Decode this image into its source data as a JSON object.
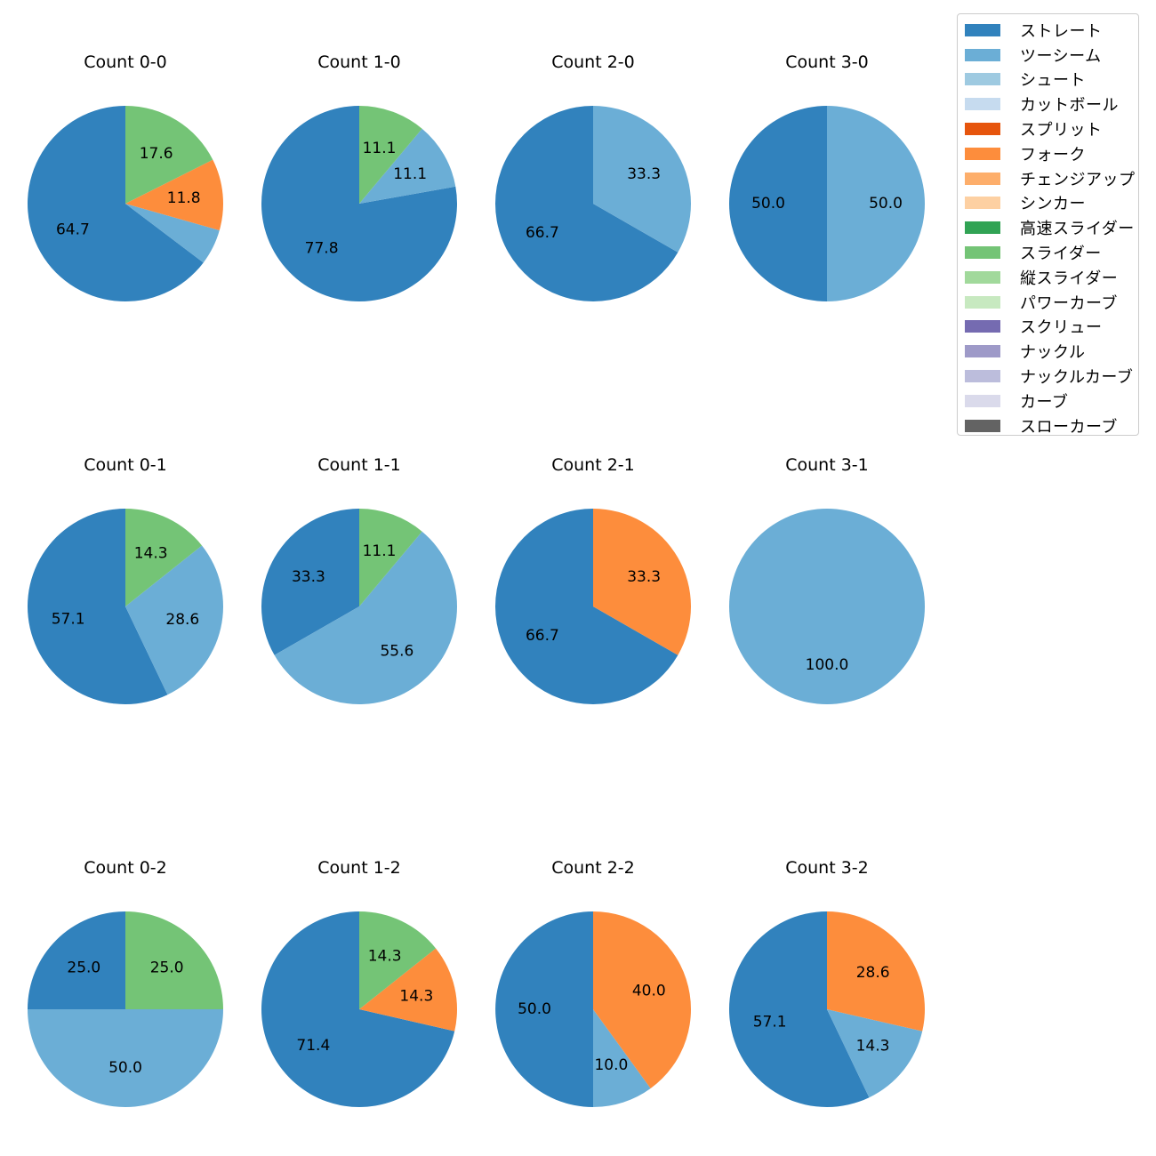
{
  "legend": [
    {
      "label": "ストレート",
      "color": "#3182bd"
    },
    {
      "label": "ツーシーム",
      "color": "#6baed6"
    },
    {
      "label": "シュート",
      "color": "#9ecae1"
    },
    {
      "label": "カットボール",
      "color": "#c6dbef"
    },
    {
      "label": "スプリット",
      "color": "#e6550d"
    },
    {
      "label": "フォーク",
      "color": "#fd8d3c"
    },
    {
      "label": "チェンジアップ",
      "color": "#fdae6b"
    },
    {
      "label": "シンカー",
      "color": "#fdd0a2"
    },
    {
      "label": "高速スライダー",
      "color": "#31a354"
    },
    {
      "label": "スライダー",
      "color": "#74c476"
    },
    {
      "label": "縦スライダー",
      "color": "#a1d99b"
    },
    {
      "label": "パワーカーブ",
      "color": "#c7e9c0"
    },
    {
      "label": "スクリュー",
      "color": "#756bb1"
    },
    {
      "label": "ナックル",
      "color": "#9e9ac8"
    },
    {
      "label": "ナックルカーブ",
      "color": "#bcbddc"
    },
    {
      "label": "カーブ",
      "color": "#dadaeb"
    },
    {
      "label": "スローカーブ",
      "color": "#636363"
    }
  ],
  "chart_data": [
    {
      "type": "pie",
      "title": "Count 0-0",
      "slices": [
        {
          "label": "ストレート",
          "value": 64.7,
          "text": "64.7"
        },
        {
          "label": "ツーシーム",
          "value": 5.9,
          "text": ""
        },
        {
          "label": "フォーク",
          "value": 11.8,
          "text": "11.8"
        },
        {
          "label": "スライダー",
          "value": 17.6,
          "text": "17.6"
        }
      ]
    },
    {
      "type": "pie",
      "title": "Count 1-0",
      "slices": [
        {
          "label": "ストレート",
          "value": 77.8,
          "text": "77.8"
        },
        {
          "label": "ツーシーム",
          "value": 11.1,
          "text": "11.1"
        },
        {
          "label": "スライダー",
          "value": 11.1,
          "text": "11.1"
        }
      ]
    },
    {
      "type": "pie",
      "title": "Count 2-0",
      "slices": [
        {
          "label": "ストレート",
          "value": 66.7,
          "text": "66.7"
        },
        {
          "label": "ツーシーム",
          "value": 33.3,
          "text": "33.3"
        }
      ]
    },
    {
      "type": "pie",
      "title": "Count 3-0",
      "slices": [
        {
          "label": "ストレート",
          "value": 50.0,
          "text": "50.0"
        },
        {
          "label": "ツーシーム",
          "value": 50.0,
          "text": "50.0"
        }
      ]
    },
    {
      "type": "pie",
      "title": "Count 0-1",
      "slices": [
        {
          "label": "ストレート",
          "value": 57.1,
          "text": "57.1"
        },
        {
          "label": "ツーシーム",
          "value": 28.6,
          "text": "28.6"
        },
        {
          "label": "スライダー",
          "value": 14.3,
          "text": "14.3"
        }
      ]
    },
    {
      "type": "pie",
      "title": "Count 1-1",
      "slices": [
        {
          "label": "ストレート",
          "value": 33.3,
          "text": "33.3"
        },
        {
          "label": "ツーシーム",
          "value": 55.6,
          "text": "55.6"
        },
        {
          "label": "スライダー",
          "value": 11.1,
          "text": "11.1"
        }
      ]
    },
    {
      "type": "pie",
      "title": "Count 2-1",
      "slices": [
        {
          "label": "ストレート",
          "value": 66.7,
          "text": "66.7"
        },
        {
          "label": "フォーク",
          "value": 33.3,
          "text": "33.3"
        }
      ]
    },
    {
      "type": "pie",
      "title": "Count 3-1",
      "slices": [
        {
          "label": "ツーシーム",
          "value": 100.0,
          "text": "100.0"
        }
      ]
    },
    {
      "type": "pie",
      "title": "Count 0-2",
      "slices": [
        {
          "label": "ストレート",
          "value": 25.0,
          "text": "25.0"
        },
        {
          "label": "ツーシーム",
          "value": 50.0,
          "text": "50.0"
        },
        {
          "label": "スライダー",
          "value": 25.0,
          "text": "25.0"
        }
      ]
    },
    {
      "type": "pie",
      "title": "Count 1-2",
      "slices": [
        {
          "label": "ストレート",
          "value": 71.4,
          "text": "71.4"
        },
        {
          "label": "フォーク",
          "value": 14.3,
          "text": "14.3"
        },
        {
          "label": "スライダー",
          "value": 14.3,
          "text": "14.3"
        }
      ]
    },
    {
      "type": "pie",
      "title": "Count 2-2",
      "slices": [
        {
          "label": "ストレート",
          "value": 50.0,
          "text": "50.0"
        },
        {
          "label": "ツーシーム",
          "value": 10.0,
          "text": "10.0"
        },
        {
          "label": "フォーク",
          "value": 40.0,
          "text": "40.0"
        }
      ]
    },
    {
      "type": "pie",
      "title": "Count 3-2",
      "slices": [
        {
          "label": "ストレート",
          "value": 57.1,
          "text": "57.1"
        },
        {
          "label": "ツーシーム",
          "value": 14.3,
          "text": "14.3"
        },
        {
          "label": "フォーク",
          "value": 28.6,
          "text": "28.6"
        }
      ]
    }
  ]
}
